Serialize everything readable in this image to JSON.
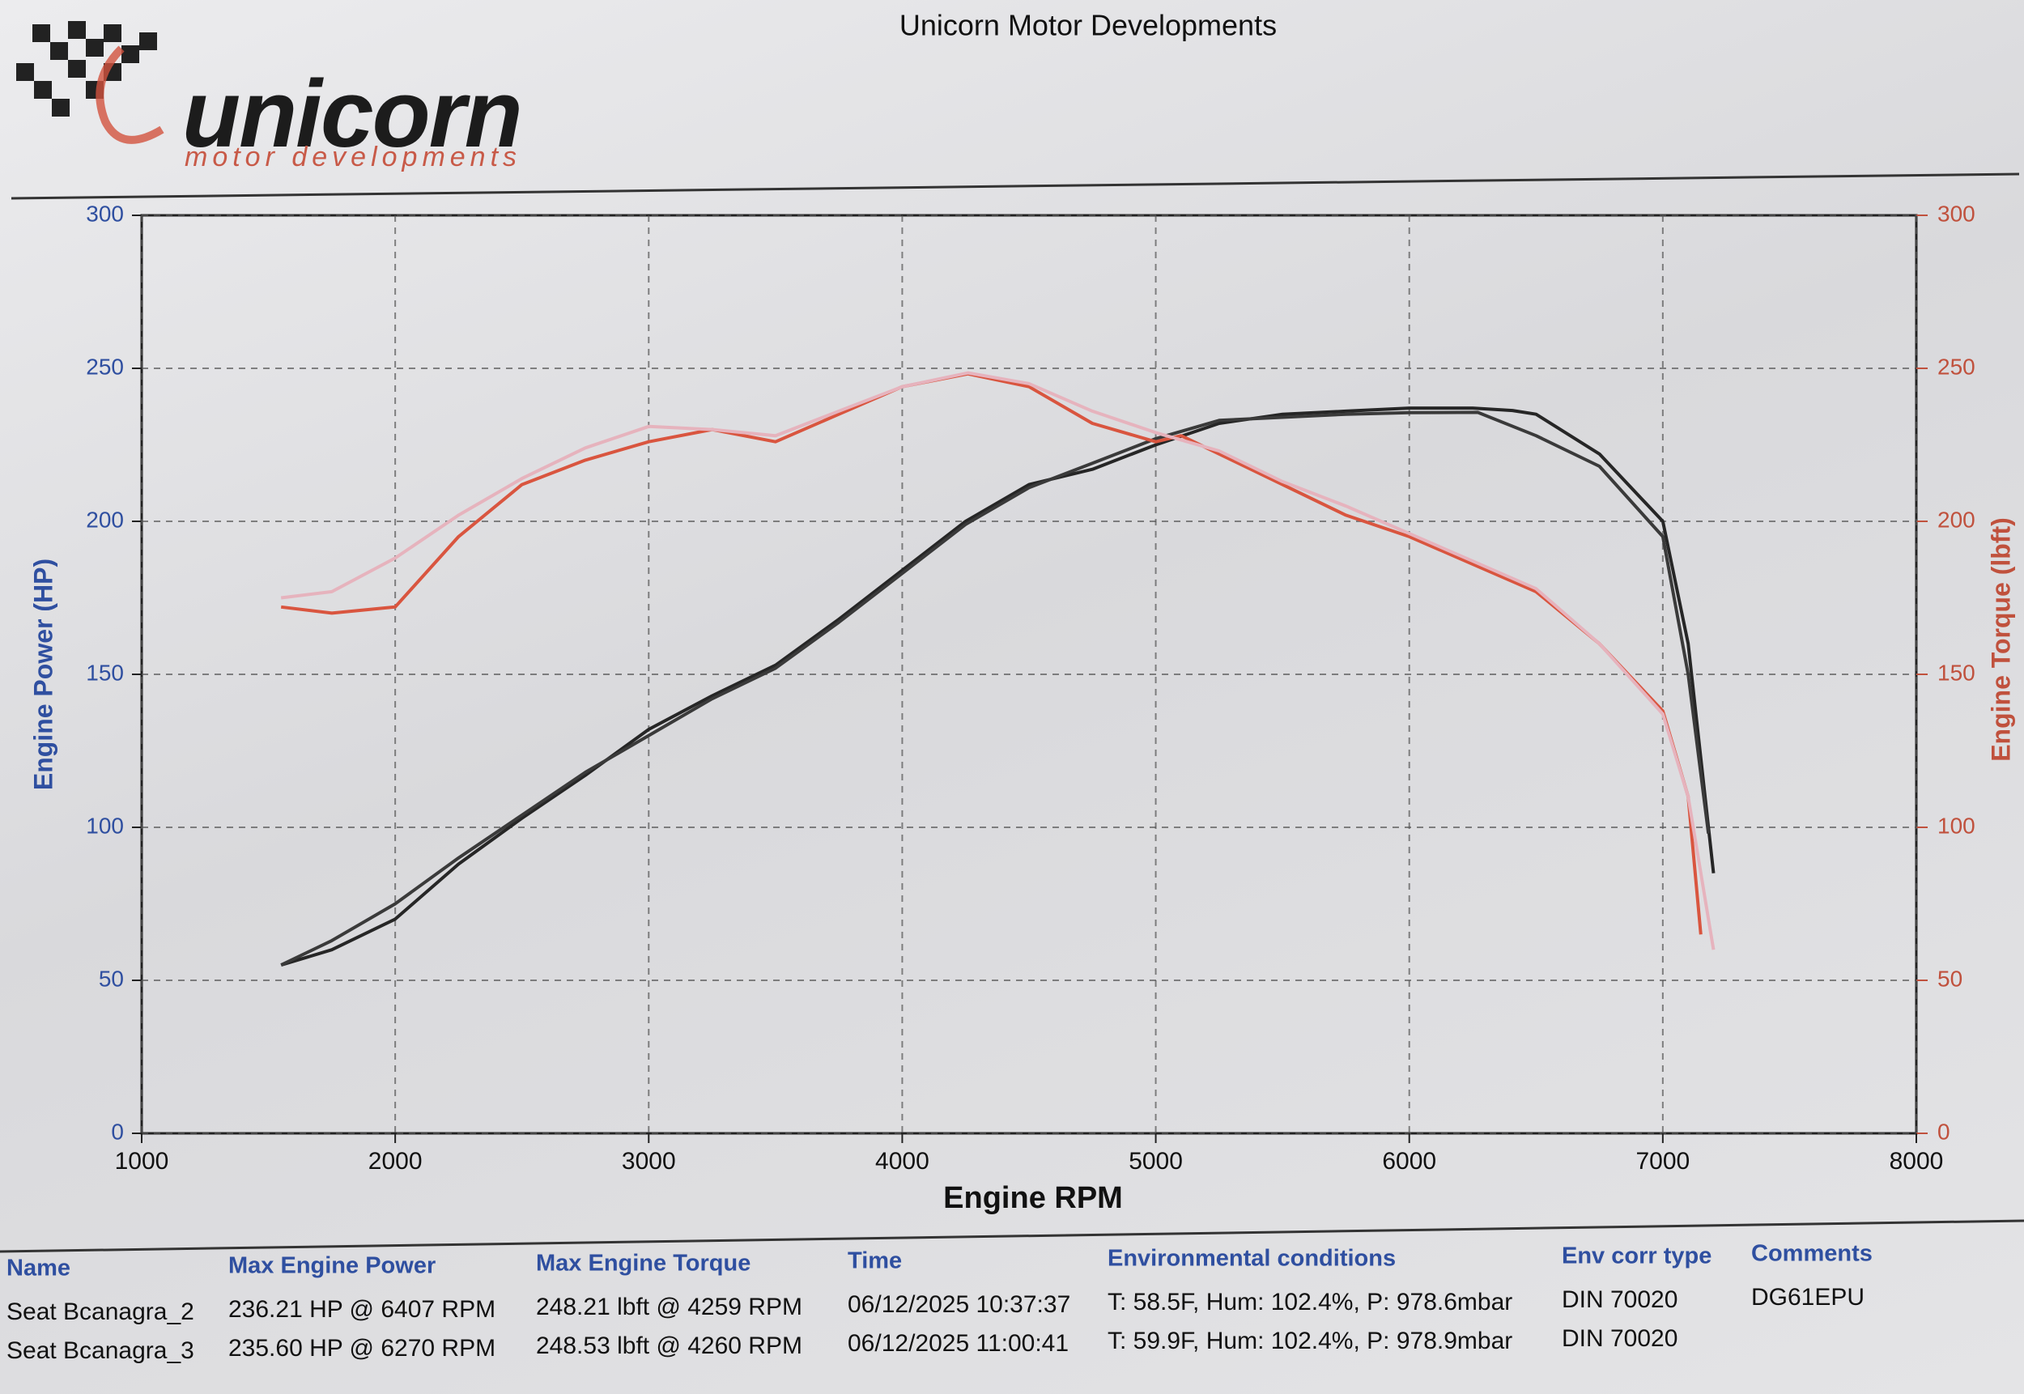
{
  "header": {
    "logo": "unicorn",
    "logo_tagline": "motor developments"
  },
  "chart_data": {
    "type": "line",
    "title": "Unicorn Motor Developments",
    "xlabel": "Engine RPM",
    "ylabel": "Engine Power (HP)",
    "y2label": "Engine Torque (lbft)",
    "xlim": [
      1000,
      8000
    ],
    "ylim": [
      0,
      300
    ],
    "y2lim": [
      0,
      300
    ],
    "xticks": [
      1000,
      2000,
      3000,
      4000,
      5000,
      6000,
      7000,
      8000
    ],
    "yticks": [
      0,
      50,
      100,
      150,
      200,
      250,
      300
    ],
    "y2ticks": [
      0,
      50,
      100,
      150,
      200,
      250,
      300
    ],
    "grid": true,
    "series": [
      {
        "color": "#262626",
        "x": [
          1550,
          1750,
          2000,
          2250,
          2500,
          2750,
          3000,
          3250,
          3500,
          3750,
          4000,
          4250,
          4500,
          4750,
          5000,
          5250,
          5500,
          5750,
          6000,
          6250,
          6407,
          6500,
          6750,
          7000,
          7100,
          7200
        ],
        "values": [
          55,
          60,
          70,
          88,
          103,
          117,
          132,
          143,
          153,
          168,
          184,
          200,
          212,
          217,
          225,
          232,
          235,
          236,
          237,
          237,
          236.21,
          235,
          222,
          200,
          160,
          85
        ]
      },
      {
        "color": "#3a3a3a",
        "x": [
          1550,
          1750,
          2000,
          2250,
          2500,
          2750,
          3000,
          3250,
          3500,
          3750,
          4000,
          4250,
          4500,
          4750,
          5000,
          5250,
          5500,
          5750,
          6000,
          6270,
          6500,
          6750,
          7000,
          7100,
          7180
        ],
        "values": [
          55,
          63,
          75,
          90,
          104,
          118,
          130,
          142,
          152,
          167,
          183,
          199,
          211,
          219,
          227,
          233,
          234,
          235,
          235.5,
          235.6,
          228,
          218,
          195,
          150,
          98
        ]
      },
      {
        "color": "#d9553f",
        "axis": "y2",
        "x": [
          1550,
          1750,
          2000,
          2250,
          2500,
          2750,
          3000,
          3250,
          3500,
          3750,
          4000,
          4259,
          4500,
          4750,
          5000,
          5100,
          5250,
          5500,
          5750,
          6000,
          6250,
          6500,
          6750,
          7000,
          7100,
          7150
        ],
        "values": [
          172,
          170,
          172,
          195,
          212,
          220,
          226,
          230,
          226,
          235,
          244,
          248.21,
          244,
          232,
          226,
          228,
          222,
          212,
          202,
          195,
          186,
          177,
          160,
          138,
          110,
          65
        ]
      },
      {
        "color": "#e6b3bd",
        "axis": "y2",
        "x": [
          1550,
          1750,
          2000,
          2250,
          2500,
          2750,
          3000,
          3250,
          3500,
          3750,
          4000,
          4260,
          4500,
          4750,
          5000,
          5250,
          5500,
          5750,
          6000,
          6250,
          6500,
          6750,
          7000,
          7100,
          7200
        ],
        "values": [
          175,
          177,
          188,
          202,
          214,
          224,
          231,
          230,
          228,
          236,
          244,
          248.53,
          245,
          236,
          229,
          223,
          213,
          205,
          196,
          187,
          178,
          160,
          137,
          110,
          60
        ]
      }
    ]
  },
  "table": {
    "headers": [
      "Name",
      "Max Engine Power",
      "Max Engine Torque",
      "Time",
      "Environmental conditions",
      "Env corr type",
      "Comments"
    ],
    "rows": [
      [
        "Seat Bcanagra_2",
        "236.21 HP @ 6407 RPM",
        "248.21 lbft @ 4259 RPM",
        "06/12/2025 10:37:37",
        "T: 58.5F, Hum: 102.4%, P: 978.6mbar",
        "DIN 70020",
        "DG61EPU"
      ],
      [
        "Seat Bcanagra_3",
        "235.60 HP @ 6270 RPM",
        "248.53 lbft @ 4260 RPM",
        "06/12/2025 11:00:41",
        "T: 59.9F, Hum: 102.4%, P: 978.9mbar",
        "DIN 70020"
      ]
    ]
  }
}
